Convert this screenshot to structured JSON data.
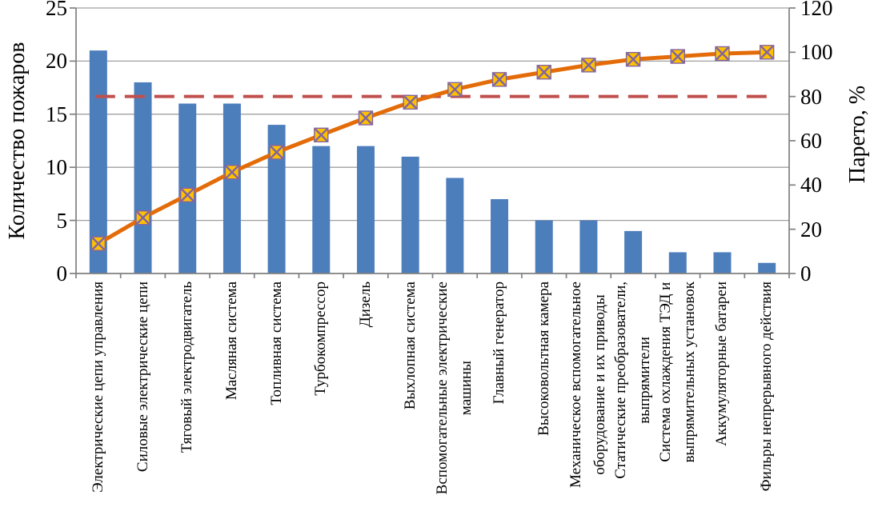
{
  "chart_data": {
    "type": "bar",
    "subtype": "pareto-combo",
    "title": "",
    "categories": [
      "Электрические цепи управления",
      "Силовые электрические цепи",
      "Тяговый электродвигатель",
      "Масляная система",
      "Топливная система",
      "Турбокомпрессор",
      "Дизель",
      "Выхлопная система",
      "Вспомогательные электрические\nмашины",
      "Главный генератор",
      "Высоковольтная камера",
      "Механическое вспомогательное\nоборудование и их приводы",
      "Статические преобразователи,\nвыпрямители",
      "Система охлаждения ТЭД и\nвыпрямительных установок",
      "Аккумуляторные батареи",
      "Фильры непрерывного действия"
    ],
    "series": [
      {
        "name": "Количество пожаров",
        "type": "bar",
        "axis": "left",
        "color": "#4D7EBC",
        "values": [
          21,
          18,
          16,
          16,
          14,
          12,
          12,
          11,
          9,
          7,
          5,
          5,
          4,
          2,
          2,
          1
        ]
      },
      {
        "name": "Парето, %",
        "type": "line",
        "axis": "right",
        "color": "#E36C09",
        "marker": "x-square",
        "marker_fill": "#FFC000",
        "marker_stroke": "#8064A2",
        "values": [
          13.5,
          25.2,
          35.5,
          45.8,
          54.8,
          62.6,
          70.3,
          77.4,
          83.2,
          87.7,
          91.0,
          94.2,
          96.8,
          98.1,
          99.4,
          100
        ]
      },
      {
        "name": "pareto-threshold",
        "type": "dashed-line",
        "axis": "right",
        "color": "#C0504D",
        "value": 80
      }
    ],
    "left_axis": {
      "label": "Количество пожаров",
      "min": 0,
      "max": 25,
      "ticks": [
        0,
        5,
        10,
        15,
        20,
        25
      ]
    },
    "right_axis": {
      "label": "Парето, %",
      "min": 0,
      "max": 120,
      "ticks": [
        0,
        20,
        40,
        60,
        80,
        100,
        120
      ]
    },
    "grid": true,
    "legend": false,
    "grid_color": "#A0A0A0",
    "axis_color": "#808080"
  }
}
